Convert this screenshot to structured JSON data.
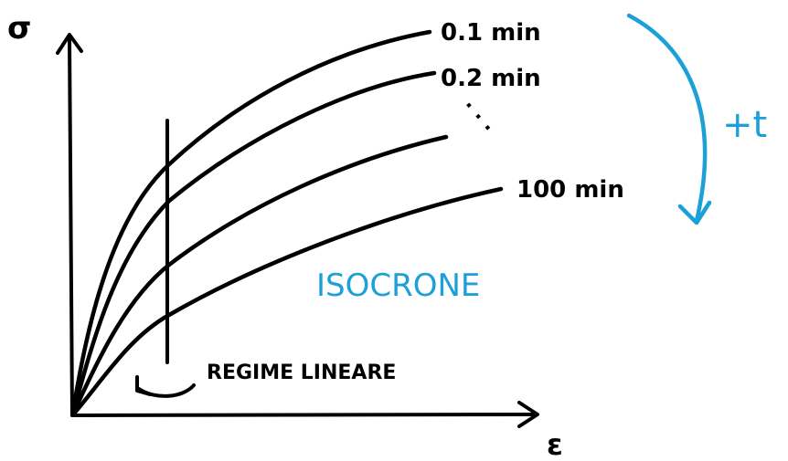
{
  "axes": {
    "y_label": "σ",
    "x_label": "ε"
  },
  "curves": [
    {
      "label": "0.1 min"
    },
    {
      "label": "0.2 min"
    },
    {
      "label": ""
    },
    {
      "label": "100 min"
    }
  ],
  "ellipsis": "· · ·",
  "time_arrow_label": "+t",
  "title": "ISOCRONE",
  "linear_regime_label": "REGIME LINEARE",
  "colors": {
    "ink": "#000000",
    "accent": "#1ba0d8"
  }
}
